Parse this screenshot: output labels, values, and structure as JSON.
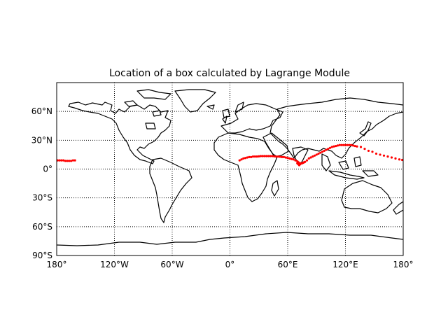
{
  "map": {
    "title": "Location of a box calculated by Lagrange Module",
    "projection": "cylindrical",
    "lon_range": [
      -180,
      180
    ],
    "lat_range": [
      -90,
      90
    ],
    "meridians": [
      -180,
      -120,
      -60,
      0,
      60,
      120,
      180
    ],
    "parallels": [
      -90,
      -60,
      -30,
      0,
      30,
      60
    ],
    "meridian_labels": [
      "180°",
      "120°W",
      "60°W",
      "0°",
      "60°E",
      "120°E",
      "180°"
    ],
    "parallel_labels": [
      "90°S",
      "60°S",
      "30°S",
      "0°",
      "30°N",
      "60°N"
    ],
    "grid": true,
    "track_color": "#ff0000",
    "coast_color": "#000000"
  },
  "chart_data": {
    "type": "scatter",
    "title": "Location of a box calculated by Lagrange Module",
    "xlabel": "",
    "ylabel": "",
    "xlim": [
      -180,
      180
    ],
    "ylim": [
      -90,
      90
    ],
    "series": [
      {
        "points": [
          [
            -179,
            9
          ],
          [
            -177,
            9
          ],
          [
            -175,
            9
          ],
          [
            -173,
            9
          ],
          [
            -171,
            8.5
          ],
          [
            -169,
            8.5
          ],
          [
            -167,
            8.5
          ],
          [
            -165,
            8.5
          ],
          [
            -163,
            9
          ],
          [
            -161,
            9
          ],
          [
            10,
            9
          ],
          [
            12,
            10
          ],
          [
            14,
            11
          ],
          [
            16,
            11.5
          ],
          [
            18,
            12
          ],
          [
            20,
            12.5
          ],
          [
            22,
            12.5
          ],
          [
            24,
            13
          ],
          [
            26,
            13
          ],
          [
            28,
            13
          ],
          [
            30,
            13.2
          ],
          [
            32,
            13.5
          ],
          [
            34,
            13.5
          ],
          [
            36,
            13.5
          ],
          [
            38,
            13.5
          ],
          [
            40,
            13.5
          ],
          [
            42,
            13.5
          ],
          [
            44,
            13.5
          ],
          [
            46,
            13.2
          ],
          [
            48,
            13
          ],
          [
            50,
            13
          ],
          [
            52,
            12.8
          ],
          [
            54,
            12.5
          ],
          [
            56,
            12.5
          ],
          [
            58,
            12
          ],
          [
            60,
            11.5
          ],
          [
            62,
            11
          ],
          [
            64,
            10.5
          ],
          [
            66,
            10
          ],
          [
            68,
            9
          ],
          [
            70,
            8
          ],
          [
            71,
            7
          ],
          [
            72,
            6
          ],
          [
            73,
            5
          ],
          [
            72,
            4
          ],
          [
            71,
            5
          ],
          [
            70,
            6
          ],
          [
            71,
            7
          ],
          [
            73,
            6
          ],
          [
            74,
            6
          ],
          [
            75,
            6
          ],
          [
            76,
            6.5
          ],
          [
            77,
            7
          ],
          [
            78,
            7.5
          ],
          [
            80,
            9
          ],
          [
            82,
            11
          ],
          [
            84,
            12
          ],
          [
            86,
            13
          ],
          [
            88,
            14
          ],
          [
            90,
            15
          ],
          [
            92,
            16
          ],
          [
            94,
            17
          ],
          [
            96,
            18
          ],
          [
            98,
            19
          ],
          [
            100,
            20
          ],
          [
            102,
            21
          ],
          [
            104,
            22
          ],
          [
            106,
            23
          ],
          [
            108,
            23.5
          ],
          [
            110,
            24
          ],
          [
            112,
            24.5
          ],
          [
            114,
            25
          ],
          [
            116,
            25
          ],
          [
            118,
            25
          ],
          [
            120,
            25
          ],
          [
            122,
            25
          ],
          [
            124,
            25
          ],
          [
            126,
            25
          ],
          [
            128,
            24.5
          ],
          [
            130,
            24
          ],
          [
            132,
            23.5
          ],
          [
            136,
            23
          ],
          [
            140,
            21
          ],
          [
            144,
            19
          ],
          [
            148,
            18
          ],
          [
            152,
            16
          ],
          [
            156,
            15
          ],
          [
            160,
            14
          ],
          [
            164,
            13
          ],
          [
            168,
            12
          ],
          [
            172,
            11
          ],
          [
            176,
            10
          ],
          [
            179,
            9.5
          ]
        ]
      }
    ]
  }
}
